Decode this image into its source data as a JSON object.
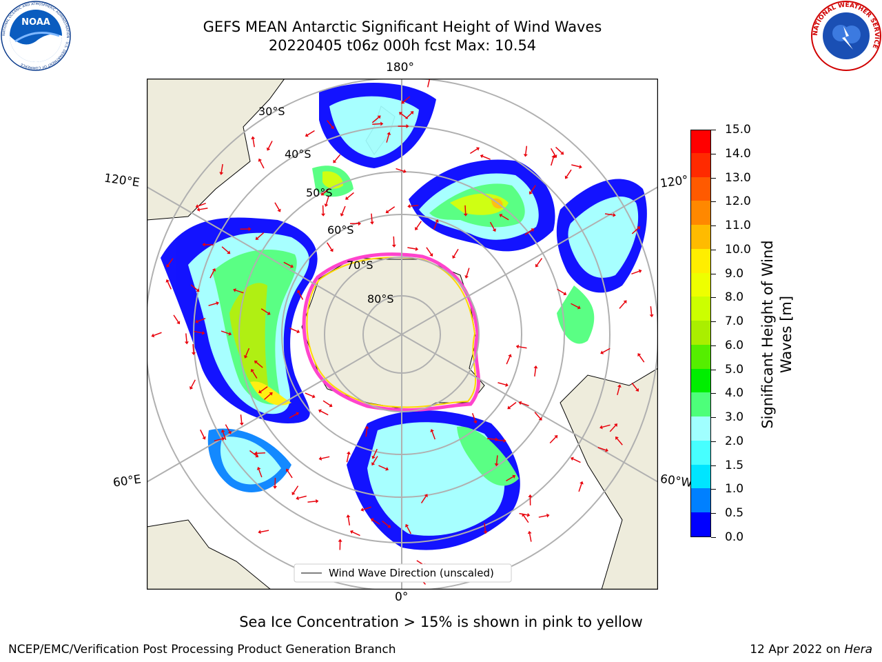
{
  "title": {
    "line1": "GEFS MEAN Antarctic Significant Height of Wind Waves",
    "line2": "20220405 t06z 000h fcst   Max: 10.54"
  },
  "logos": {
    "noaa_text": "NOAA",
    "noaa_ring": "NATIONAL OCEANIC AND ATMOSPHERIC ADMINISTRATION · U.S. DEPARTMENT OF COMMERCE",
    "nws_ring": "NATIONAL WEATHER SERVICE"
  },
  "map": {
    "projection": "south-polar-stereographic",
    "longitude_labels": {
      "top": "180°",
      "bottom": "0°",
      "upper_left": "120°E",
      "upper_right": "120°",
      "lower_left": "60°E",
      "lower_right": "60°W"
    },
    "latitude_labels": [
      "30°S",
      "40°S",
      "50°S",
      "60°S",
      "70°S",
      "80°S"
    ],
    "land_color": "#eeecdc",
    "legend_label": "Wind Wave Direction (unscaled)",
    "arrow_color": "#e8000b",
    "sea_ice_colors": [
      "#ff44cc",
      "#ff88aa",
      "#ffaa44",
      "#ffd700"
    ]
  },
  "colorbar": {
    "label": "Significant Height of Wind Waves [m]",
    "ticks": [
      "15.0",
      "14.0",
      "13.0",
      "12.0",
      "11.0",
      "10.0",
      "9.0",
      "8.0",
      "7.0",
      "6.0",
      "5.0",
      "4.0",
      "3.0",
      "2.0",
      "1.5",
      "1.0",
      "0.5",
      "0.0"
    ],
    "colors": [
      "#0000ff",
      "#0080ff",
      "#00e5ff",
      "#47ffff",
      "#a0ffff",
      "#4dff7a",
      "#00ee00",
      "#55ee00",
      "#aaee00",
      "#ccff00",
      "#eeff00",
      "#ffee00",
      "#ffbb00",
      "#ff8800",
      "#ff5a00",
      "#ff2a00",
      "#ff0000"
    ]
  },
  "footnote": "Sea Ice Concentration > 15% is shown in pink to yellow",
  "credit": "NCEP/EMC/Verification Post Processing Product Generation Branch",
  "date_stamp": {
    "date": "12 Apr 2022 on ",
    "system": "Hera"
  }
}
